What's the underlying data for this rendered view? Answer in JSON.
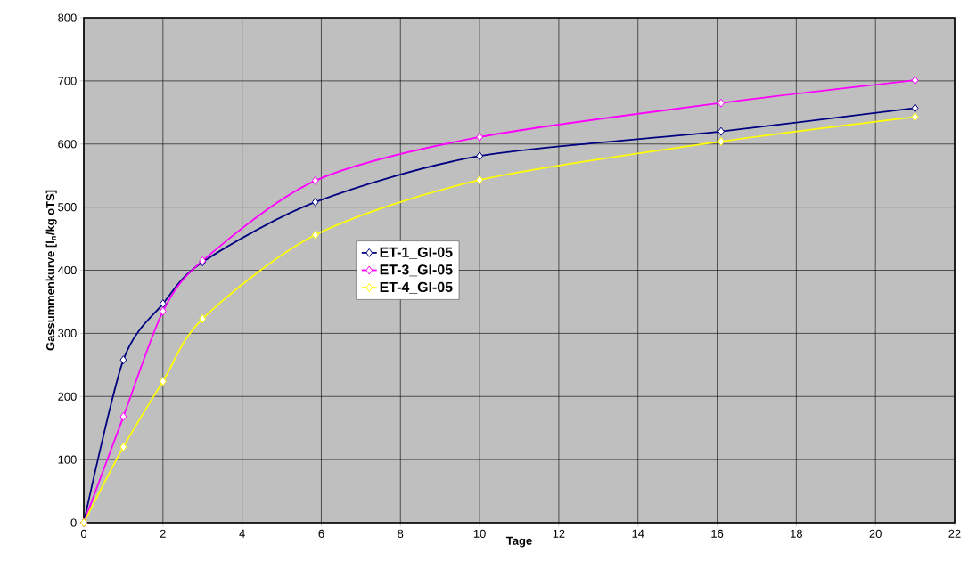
{
  "chart_data": {
    "type": "line",
    "xlabel": "Tage",
    "ylabel": "Gassummenkurve [l$_{n}$/kg oTS]",
    "x": [
      0,
      1,
      2,
      3,
      5.85,
      10,
      16.1,
      21
    ],
    "series": [
      {
        "name": "ET-1_GI-05",
        "color": "#000080",
        "values": [
          0,
          258,
          347,
          413,
          508,
          581,
          620,
          657
        ]
      },
      {
        "name": "ET-3_GI-05",
        "color": "#ff00ff",
        "values": [
          0,
          168,
          335,
          415,
          542,
          611,
          665,
          701
        ]
      },
      {
        "name": "ET-4_GI-05",
        "color": "#ffff00",
        "values": [
          0,
          120,
          224,
          323,
          456,
          543,
          604,
          643
        ]
      }
    ],
    "xlim": [
      0,
      22
    ],
    "xticks": [
      0,
      2,
      4,
      6,
      8,
      10,
      12,
      14,
      16,
      18,
      20,
      22
    ],
    "ylim": [
      0,
      800
    ],
    "yticks": [
      0,
      100,
      200,
      300,
      400,
      500,
      600,
      700,
      800
    ],
    "grid": true,
    "legend": "center",
    "marker": "diamond",
    "line_style": "solid"
  }
}
